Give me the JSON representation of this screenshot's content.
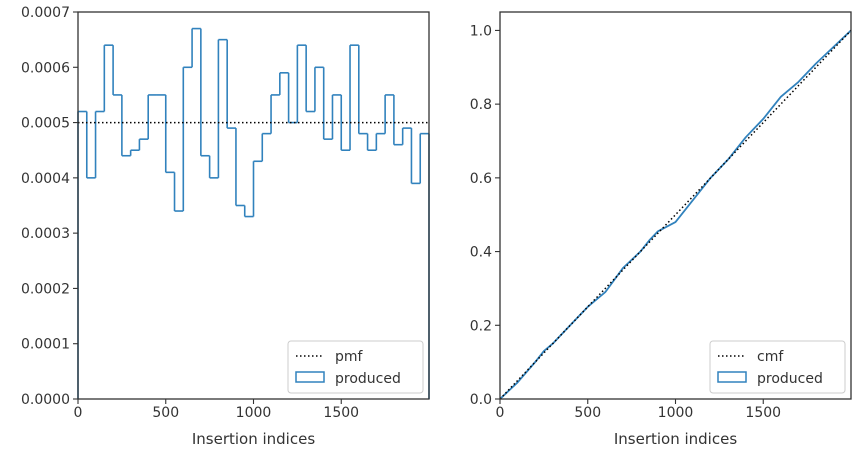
{
  "colors": {
    "series": "#3182bd",
    "reference": "#000000",
    "axis": "#333333",
    "legend_border": "#cccccc"
  },
  "chart_data": [
    {
      "type": "histogram",
      "xlabel": "Insertion indices",
      "ylabel": "",
      "xlim": [
        0,
        2000
      ],
      "ylim": [
        0,
        0.0007
      ],
      "x_ticks": [
        0,
        500,
        1000,
        1500
      ],
      "y_ticks": [
        0.0,
        0.0001,
        0.0002,
        0.0003,
        0.0004,
        0.0005,
        0.0006,
        0.0007
      ],
      "y_tick_labels": [
        "0.0000",
        "0.0001",
        "0.0002",
        "0.0003",
        "0.0004",
        "0.0005",
        "0.0006",
        "0.0007"
      ],
      "x_tick_labels": [
        "0",
        "500",
        "1000",
        "1500"
      ],
      "legend_position": "lower right",
      "reference_line": {
        "name": "pmf",
        "style": "dotted",
        "y": 0.0005
      },
      "series": [
        {
          "name": "produced",
          "style": "step",
          "bin_width": 50,
          "bin_edges_start": 0,
          "values": [
            0.00052,
            0.0004,
            0.00052,
            0.00064,
            0.00055,
            0.00044,
            0.00045,
            0.00047,
            0.00055,
            0.00055,
            0.00041,
            0.00034,
            0.0006,
            0.00067,
            0.00044,
            0.0004,
            0.00065,
            0.00049,
            0.00035,
            0.00033,
            0.00043,
            0.00048,
            0.00055,
            0.00059,
            0.0005,
            0.00064,
            0.00052,
            0.0006,
            0.00047,
            0.00055,
            0.00045,
            0.00064,
            0.00048,
            0.00045,
            0.00048,
            0.00055,
            0.00046,
            0.00049,
            0.00039,
            0.00048
          ]
        }
      ]
    },
    {
      "type": "line",
      "xlabel": "Insertion indices",
      "ylabel": "",
      "xlim": [
        0,
        2000
      ],
      "ylim": [
        0,
        1.05
      ],
      "x_ticks": [
        0,
        500,
        1000,
        1500
      ],
      "x_tick_labels": [
        "0",
        "500",
        "1000",
        "1500"
      ],
      "y_ticks": [
        0.0,
        0.2,
        0.4,
        0.6,
        0.8,
        1.0
      ],
      "y_tick_labels": [
        "0.0",
        "0.2",
        "0.4",
        "0.6",
        "0.8",
        "1.0"
      ],
      "legend_position": "lower right",
      "reference_line": {
        "name": "cmf",
        "style": "dotted",
        "from": [
          0,
          0
        ],
        "to": [
          2000,
          1.0
        ]
      },
      "series": [
        {
          "name": "produced",
          "style": "solid",
          "x": [
            0,
            100,
            200,
            250,
            300,
            400,
            500,
            600,
            700,
            800,
            850,
            900,
            1000,
            1100,
            1200,
            1300,
            1400,
            1500,
            1600,
            1700,
            1800,
            1900,
            2000
          ],
          "y": [
            0.0,
            0.045,
            0.1,
            0.13,
            0.15,
            0.2,
            0.25,
            0.29,
            0.355,
            0.4,
            0.43,
            0.455,
            0.48,
            0.54,
            0.6,
            0.65,
            0.71,
            0.76,
            0.82,
            0.86,
            0.91,
            0.955,
            1.0
          ]
        }
      ]
    }
  ]
}
